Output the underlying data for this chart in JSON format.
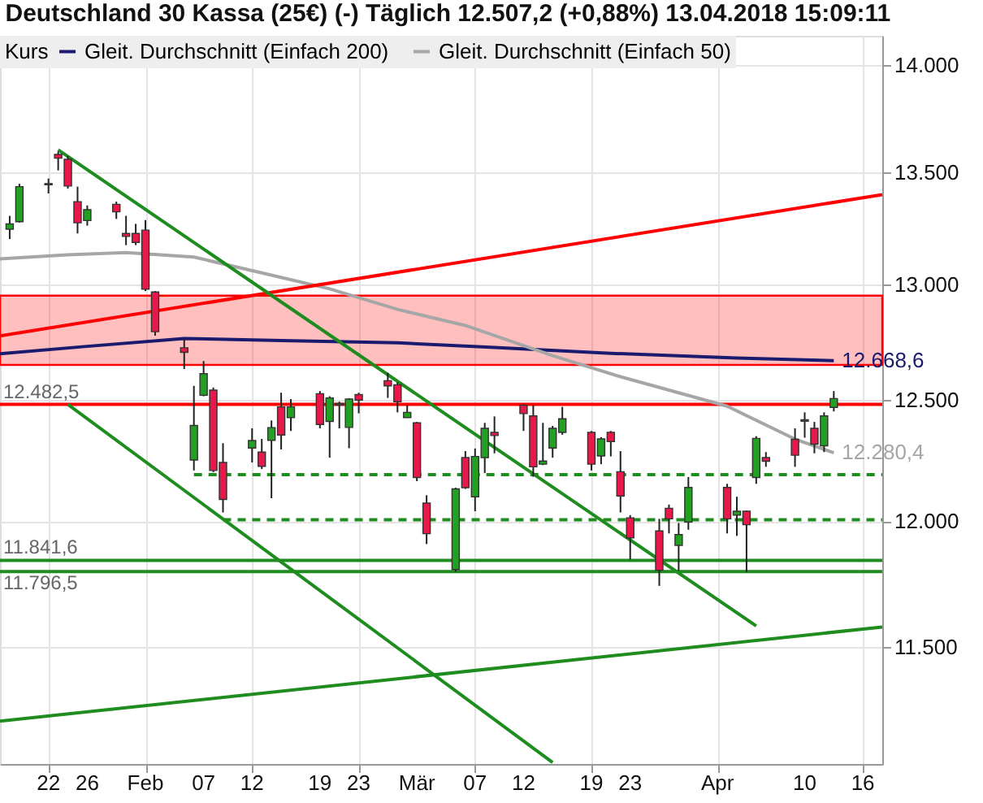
{
  "chart_data": {
    "type": "candlestick",
    "title": "Deutschland 30 Kassa (25€) (-) Täglich 12.507,2 (+0,88%) 13.04.2018 15:09:11",
    "legend_title": "Kurs",
    "legend": "top left",
    "log": true,
    "grid": true,
    "x": [
      "2018-01-18",
      "2018-01-19",
      "2018-01-22",
      "2018-01-23",
      "2018-01-24",
      "2018-01-25",
      "2018-01-26",
      "2018-01-29",
      "2018-01-30",
      "2018-01-31",
      "2018-02-01",
      "2018-02-02",
      "2018-02-05",
      "2018-02-06",
      "2018-02-07",
      "2018-02-08",
      "2018-02-09",
      "2018-02-12",
      "2018-02-13",
      "2018-02-14",
      "2018-02-15",
      "2018-02-16",
      "2018-02-19",
      "2018-02-20",
      "2018-02-21",
      "2018-02-22",
      "2018-02-23",
      "2018-02-26",
      "2018-02-27",
      "2018-02-28",
      "2018-03-01",
      "2018-03-02",
      "2018-03-05",
      "2018-03-06",
      "2018-03-07",
      "2018-03-08",
      "2018-03-09",
      "2018-03-12",
      "2018-03-13",
      "2018-03-14",
      "2018-03-15",
      "2018-03-16",
      "2018-03-19",
      "2018-03-20",
      "2018-03-21",
      "2018-03-22",
      "2018-03-23",
      "2018-03-26",
      "2018-03-27",
      "2018-03-28",
      "2018-03-29",
      "2018-04-02",
      "2018-04-03",
      "2018-04-04",
      "2018-04-05",
      "2018-04-06",
      "2018-04-09",
      "2018-04-10",
      "2018-04-11",
      "2018-04-12",
      "2018-04-13"
    ],
    "ohlc": [
      [
        13244,
        13304,
        13200,
        13268
      ],
      [
        13278,
        13449,
        13274,
        13436
      ],
      [
        13445,
        13473,
        13405,
        13450
      ],
      [
        13583,
        13596,
        13510,
        13566
      ],
      [
        13561,
        13575,
        13427,
        13439
      ],
      [
        13368,
        13436,
        13225,
        13273
      ],
      [
        13283,
        13351,
        13260,
        13332
      ],
      [
        13356,
        13368,
        13290,
        13322
      ],
      [
        13225,
        13304,
        13173,
        13212
      ],
      [
        13225,
        13268,
        13173,
        13185
      ],
      [
        13240,
        13285,
        12970,
        12978
      ],
      [
        12966,
        12970,
        12776,
        12793
      ],
      [
        12724,
        12760,
        12633,
        12704
      ],
      [
        12250,
        12561,
        12207,
        12394
      ],
      [
        12521,
        12667,
        12517,
        12613
      ],
      [
        12543,
        12554,
        12200,
        12207
      ],
      [
        12240,
        12320,
        12035,
        12088
      ],
      [
        12300,
        12382,
        12240,
        12331
      ],
      [
        12283,
        12338,
        12213,
        12224
      ],
      [
        12332,
        12415,
        12093,
        12385
      ],
      [
        12472,
        12532,
        12294,
        12354
      ],
      [
        12427,
        12505,
        12371,
        12472
      ],
      [
        12528,
        12539,
        12382,
        12398
      ],
      [
        12411,
        12517,
        12260,
        12510
      ],
      [
        12480,
        12494,
        12382,
        12486
      ],
      [
        12386,
        12509,
        12299,
        12505
      ],
      [
        12524,
        12532,
        12445,
        12501
      ],
      [
        12583,
        12617,
        12510,
        12561
      ],
      [
        12566,
        12576,
        12449,
        12494
      ],
      [
        12427,
        12479,
        12427,
        12449
      ],
      [
        12405,
        12409,
        12163,
        12178
      ],
      [
        12073,
        12105,
        11907,
        11949
      ],
      [
        11805,
        12136,
        11796,
        12131
      ],
      [
        12260,
        12287,
        12131,
        12136
      ],
      [
        12099,
        12298,
        12040,
        12265
      ],
      [
        12260,
        12405,
        12196,
        12382
      ],
      [
        12365,
        12432,
        12278,
        12352
      ],
      [
        12479,
        12483,
        12371,
        12444
      ],
      [
        12434,
        12479,
        12181,
        12222
      ],
      [
        12233,
        12405,
        12229,
        12246
      ],
      [
        12300,
        12392,
        12260,
        12382
      ],
      [
        12365,
        12472,
        12355,
        12422
      ],
      [
        12365,
        12371,
        12207,
        12233
      ],
      [
        12267,
        12345,
        12233,
        12338
      ],
      [
        12365,
        12371,
        12265,
        12327
      ],
      [
        12202,
        12287,
        12035,
        12102
      ],
      [
        12013,
        12024,
        11845,
        11932
      ],
      [
        11960,
        12009,
        11740,
        11802
      ],
      [
        12052,
        12067,
        11950,
        12009
      ],
      [
        11902,
        11992,
        11800,
        11945
      ],
      [
        11996,
        12180,
        11965,
        12137
      ],
      [
        12137,
        12152,
        11950,
        12009
      ],
      [
        12024,
        12099,
        11940,
        12040
      ],
      [
        12040,
        12042,
        11795,
        11985
      ],
      [
        12178,
        12349,
        12152,
        12340
      ],
      [
        12260,
        12283,
        12222,
        12245
      ],
      [
        12336,
        12382,
        12222,
        12270
      ],
      [
        12412,
        12449,
        12343,
        12418
      ],
      [
        12382,
        12409,
        12278,
        12316
      ],
      [
        12309,
        12449,
        12283,
        12434
      ],
      [
        12470,
        12539,
        12453,
        12507.2
      ]
    ],
    "series": [
      {
        "name": "Gleit. Durchschnitt (Einfach 200)",
        "type": "line",
        "color": "#1a1a6e",
        "x": [
          "2018-01-17",
          "2018-01-26",
          "2018-02-05",
          "2018-02-15",
          "2018-02-27",
          "2018-03-09",
          "2018-03-21",
          "2018-04-03",
          "2018-04-13"
        ],
        "values": [
          12698,
          12730,
          12764,
          12755,
          12745,
          12725,
          12700,
          12680,
          12668.6
        ],
        "value_labels": [
          null,
          null,
          null,
          null,
          null,
          null,
          null,
          null,
          "12.668,6"
        ]
      },
      {
        "name": "Gleit. Durchschnitt (Einfach 50)",
        "type": "line",
        "color": "#a6a6a6",
        "x": [
          "2018-01-17",
          "2018-01-24",
          "2018-01-30",
          "2018-02-06",
          "2018-02-13",
          "2018-02-20",
          "2018-02-27",
          "2018-03-06",
          "2018-03-15",
          "2018-03-22",
          "2018-04-02",
          "2018-04-09",
          "2018-04-13"
        ],
        "values": [
          13112,
          13130,
          13140,
          13120,
          13050,
          12980,
          12890,
          12820,
          12690,
          12600,
          12475,
          12337,
          12280.4
        ],
        "value_labels": [
          null,
          null,
          null,
          null,
          null,
          null,
          null,
          null,
          null,
          null,
          null,
          null,
          "12.280,4"
        ]
      },
      {
        "type": "line",
        "color": "#ff0000",
        "x": [
          "2018-01-17",
          "2018-04-18"
        ],
        "values": [
          12775,
          13400
        ]
      },
      {
        "type": "line",
        "color": "#1e8c1e",
        "x": [
          "2018-01-23",
          "2018-04-05"
        ],
        "values": [
          13604,
          11582
        ]
      },
      {
        "type": "line",
        "color": "#1e8c1e",
        "x": [
          "2018-01-24",
          "2018-03-15"
        ],
        "values": [
          12482.5,
          11060
        ]
      },
      {
        "type": "line",
        "color": "#1e8c1e",
        "x": [
          "2018-01-17",
          "2018-04-18"
        ],
        "values": [
          11215,
          11578
        ]
      },
      {
        "type": "line",
        "color": "#1e8c1e",
        "line_style": "dashed",
        "x": [
          "2018-02-06",
          "2018-04-18"
        ],
        "values": [
          12190,
          12190
        ]
      },
      {
        "type": "line",
        "color": "#1e8c1e",
        "line_style": "dashed",
        "x": [
          "2018-02-09",
          "2018-04-18"
        ],
        "values": [
          12005,
          12005
        ]
      }
    ],
    "bands": [
      {
        "axis": "y",
        "from": 12650,
        "to": 12950,
        "color": "#ff0000"
      }
    ],
    "ref_lines": [
      {
        "axis": "y",
        "value": 12482.5,
        "label": "12.482,5",
        "color": "#ff0000"
      },
      {
        "axis": "y",
        "value": 11841.6,
        "label": "11.841,6",
        "color": "#1e8c1e"
      },
      {
        "axis": "y",
        "value": 11796.5,
        "label": "11.796,5",
        "color": "#1e8c1e"
      }
    ],
    "xlim": [
      "2018-01-17",
      "2018-04-18"
    ],
    "xticks": [
      {
        "value": "2018-01-22",
        "label": "22"
      },
      {
        "value": "2018-01-26",
        "label": "26"
      },
      {
        "value": "2018-02-01",
        "label": "Feb"
      },
      {
        "value": "2018-02-07",
        "label": "07"
      },
      {
        "value": "2018-02-12",
        "label": "12"
      },
      {
        "value": "2018-02-19",
        "label": "19"
      },
      {
        "value": "2018-02-23",
        "label": "23"
      },
      {
        "value": "2018-03-01",
        "label": "Mär"
      },
      {
        "value": "2018-03-07",
        "label": "07"
      },
      {
        "value": "2018-03-12",
        "label": "12"
      },
      {
        "value": "2018-03-19",
        "label": "19"
      },
      {
        "value": "2018-03-23",
        "label": "23"
      },
      {
        "value": "2018-04-01",
        "label": "Apr"
      },
      {
        "value": "2018-04-10",
        "label": "10"
      },
      {
        "value": "2018-04-16",
        "label": "16"
      }
    ],
    "ylim": [
      11054,
      14139
    ],
    "yticks": [
      {
        "value": 11500,
        "label": "11.500"
      },
      {
        "value": 12000,
        "label": "12.000"
      },
      {
        "value": 12500,
        "label": "12.500"
      },
      {
        "value": 13000,
        "label": "13.000"
      },
      {
        "value": 13500,
        "label": "13.500"
      },
      {
        "value": 14000,
        "label": "14.000"
      }
    ]
  }
}
